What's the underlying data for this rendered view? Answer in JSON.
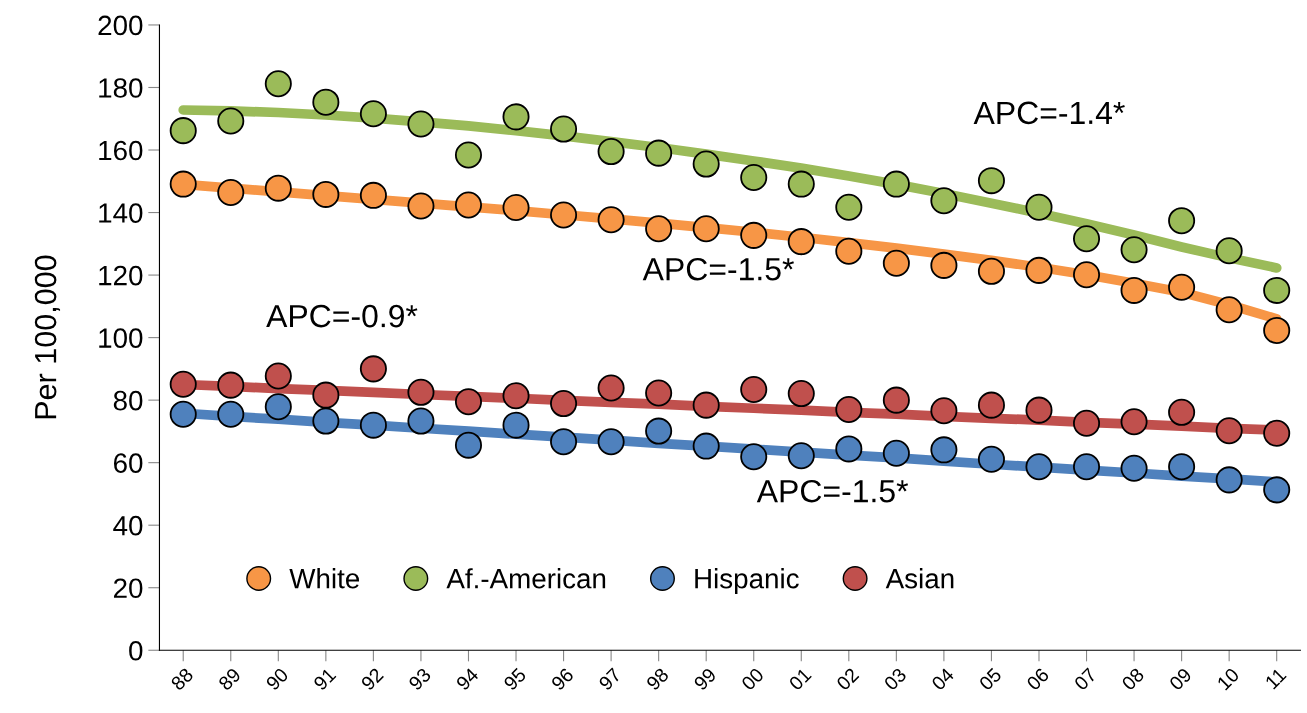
{
  "chart_data": {
    "type": "scatter",
    "ylabel": "Per 100,000",
    "categories": [
      "88",
      "89",
      "90",
      "91",
      "92",
      "93",
      "94",
      "95",
      "96",
      "97",
      "98",
      "99",
      "00",
      "01",
      "02",
      "03",
      "04",
      "05",
      "06",
      "07",
      "08",
      "09",
      "10",
      "11"
    ],
    "series": [
      {
        "name": "White",
        "marker": "circle",
        "color": "#f79646",
        "values": [
          149.1,
          146.4,
          147.8,
          145.8,
          145.5,
          142.1,
          142.4,
          141.6,
          139.2,
          137.7,
          134.8,
          134.8,
          132.7,
          130.7,
          127.6,
          123.8,
          123.1,
          121.2,
          121.5,
          120.1,
          115.1,
          116.1,
          108.9,
          102.3
        ]
      },
      {
        "name": "Af.-American",
        "marker": "circle",
        "color": "#9bbb59",
        "values": [
          166.2,
          169.3,
          181.2,
          175.3,
          171.6,
          168.3,
          158.4,
          170.6,
          166.7,
          159.5,
          159.0,
          155.5,
          151.2,
          149.1,
          141.7,
          149.1,
          143.8,
          150.2,
          141.7,
          131.6,
          128.1,
          137.4,
          127.8,
          115.1
        ]
      },
      {
        "name": "Hispanic",
        "marker": "circle",
        "color": "#4f81bd",
        "values": [
          75.5,
          75.5,
          77.9,
          73.3,
          72.0,
          73.3,
          65.6,
          72.0,
          66.7,
          66.7,
          70.1,
          65.3,
          61.9,
          62.2,
          64.4,
          63.0,
          64.1,
          61.1,
          58.7,
          58.7,
          58.2,
          58.7,
          54.5,
          51.3
        ]
      },
      {
        "name": "Asian",
        "marker": "circle",
        "color": "#c0504d",
        "values": [
          85.1,
          84.8,
          87.7,
          81.6,
          90.0,
          82.5,
          79.5,
          81.4,
          78.9,
          83.9,
          82.3,
          78.4,
          83.4,
          82.1,
          77.0,
          80.0,
          76.6,
          78.4,
          76.8,
          72.6,
          73.1,
          76.1,
          70.2,
          69.4
        ]
      },
      {
        "type": "line",
        "marker": "none",
        "color": "#f79646",
        "values": [
          149.0,
          147.8,
          146.6,
          145.4,
          144.2,
          143.0,
          141.8,
          140.6,
          139.3,
          138.0,
          136.6,
          135.2,
          133.7,
          132.1,
          130.4,
          128.6,
          126.7,
          124.7,
          122.5,
          120.1,
          117.4,
          114.5,
          110.5,
          106.0
        ]
      },
      {
        "type": "line",
        "marker": "none",
        "color": "#9bbb59",
        "values": [
          172.8,
          172.5,
          172.0,
          171.2,
          170.2,
          169.0,
          167.7,
          166.2,
          164.5,
          162.7,
          160.8,
          158.7,
          156.5,
          154.2,
          151.7,
          149.0,
          146.1,
          143.0,
          139.8,
          136.4,
          132.8,
          129.0,
          125.5,
          122.3
        ]
      },
      {
        "type": "line",
        "marker": "none",
        "color": "#4f81bd",
        "values": [
          75.8,
          74.8,
          73.9,
          72.9,
          72.0,
          71.0,
          70.1,
          69.1,
          68.2,
          67.2,
          66.2,
          65.3,
          64.3,
          63.4,
          62.4,
          61.5,
          60.5,
          59.5,
          58.6,
          57.6,
          56.7,
          55.7,
          54.8,
          53.8
        ]
      },
      {
        "type": "line",
        "marker": "none",
        "color": "#c0504d",
        "values": [
          85.0,
          84.4,
          83.7,
          83.1,
          82.5,
          81.8,
          81.2,
          80.6,
          79.9,
          79.3,
          78.7,
          78.0,
          77.4,
          76.8,
          76.1,
          75.5,
          74.8,
          74.2,
          73.6,
          72.9,
          72.3,
          71.7,
          71.0,
          70.4
        ]
      }
    ],
    "ylim": [
      0,
      200
    ],
    "yticks": [
      0,
      20,
      40,
      60,
      80,
      100,
      120,
      140,
      160,
      180,
      200
    ],
    "annotations": [
      "APC=-1.4*",
      "APC=-1.5*",
      "APC=-0.9*",
      "APC=-1.5*"
    ],
    "grid": false,
    "legend": "bottom"
  }
}
